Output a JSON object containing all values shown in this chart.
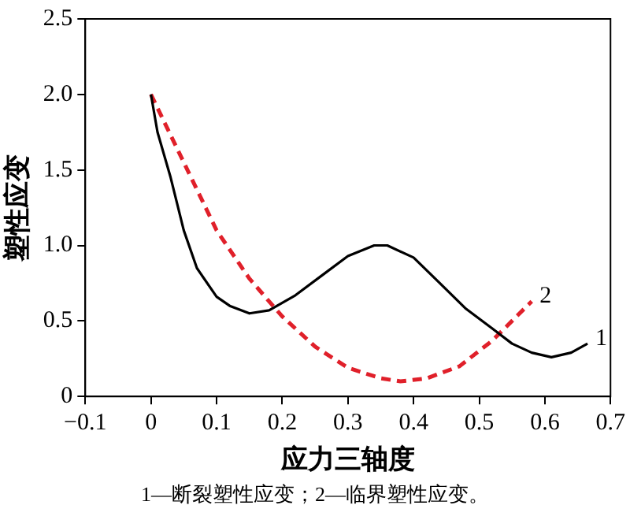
{
  "chart_data": {
    "type": "line",
    "xlabel": "应力三轴度",
    "ylabel": "塑性应变",
    "xlim": [
      -0.1,
      0.7
    ],
    "xticks": [
      {
        "value": -0.1,
        "label": "−0.1"
      },
      0,
      0.1,
      0.2,
      0.3,
      0.4,
      0.5,
      0.6,
      0.7
    ],
    "ylim": [
      0,
      2.5
    ],
    "yticks": [
      0,
      0.5,
      {
        "value": 1,
        "label": "1.0"
      },
      1.5,
      {
        "value": 2,
        "label": "2.0"
      },
      2.5
    ],
    "grid": false,
    "legend": false,
    "marker": "none",
    "series": [
      {
        "name": "1",
        "color": "#000000",
        "line_style": "solid",
        "x": [
          0,
          0.01,
          0.03,
          0.05,
          0.07,
          0.1,
          0.12,
          0.15,
          0.18,
          0.22,
          0.26,
          0.3,
          0.34,
          0.36,
          0.4,
          0.44,
          0.48,
          0.52,
          0.55,
          0.58,
          0.61,
          0.64,
          0.665
        ],
        "values": [
          2.0,
          1.75,
          1.45,
          1.1,
          0.85,
          0.66,
          0.6,
          0.55,
          0.57,
          0.67,
          0.8,
          0.93,
          1.0,
          1.0,
          0.92,
          0.75,
          0.58,
          0.45,
          0.35,
          0.29,
          0.26,
          0.29,
          0.35
        ]
      },
      {
        "name": "2",
        "color": "#e0202a",
        "line_style": "dashed",
        "x": [
          0,
          0.05,
          0.1,
          0.15,
          0.2,
          0.25,
          0.3,
          0.35,
          0.38,
          0.42,
          0.47,
          0.52,
          0.55,
          0.58
        ],
        "values": [
          2.0,
          1.55,
          1.1,
          0.78,
          0.53,
          0.33,
          0.19,
          0.12,
          0.1,
          0.12,
          0.2,
          0.37,
          0.5,
          0.63
        ]
      }
    ],
    "annotations": [
      "1—断裂塑性应变；2—临界塑性应变。"
    ]
  }
}
